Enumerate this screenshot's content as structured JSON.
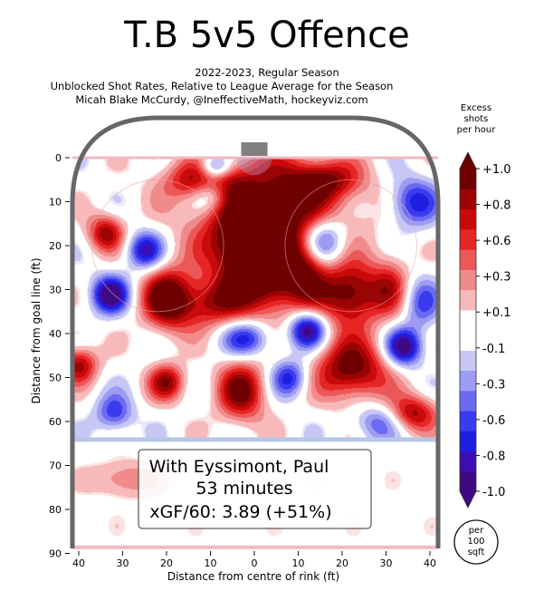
{
  "chart_data": {
    "type": "heatmap",
    "title": "T.B 5v5 Offence",
    "subtitle_lines": [
      "2022-2023, Regular Season",
      "Unblocked Shot Rates, Relative to League Average for the Season",
      "Micah Blake McCurdy, @IneffectiveMath, hockeyviz.com"
    ],
    "xlabel": "Distance from centre of rink (ft)",
    "ylabel": "Distance from goal line (ft)",
    "x_ticks": [
      40,
      30,
      20,
      10,
      0,
      10,
      20,
      30,
      40
    ],
    "y_ticks": [
      0,
      10,
      20,
      30,
      40,
      50,
      60,
      70,
      80,
      90
    ],
    "xlim": [
      -42,
      42
    ],
    "ylim": [
      0,
      90
    ],
    "colorbar": {
      "title_lines": [
        "Excess",
        "shots",
        "per hour"
      ],
      "tick_labels": [
        "+1.0",
        "+0.8",
        "+0.6",
        "+0.3",
        "+0.1",
        "-0.1",
        "-0.3",
        "-0.6",
        "-0.8",
        "-1.0"
      ],
      "range": [
        -1.0,
        1.0
      ],
      "unit_lines": [
        "per",
        "100",
        "sqft"
      ]
    },
    "hotspots": [
      {
        "x": 4,
        "y": 12,
        "value": 1.0,
        "sx": 12,
        "sy": 9
      },
      {
        "x": -1,
        "y": 20,
        "value": 0.9,
        "sx": 6,
        "sy": 6
      },
      {
        "x": -20,
        "y": 32,
        "value": 1.0,
        "sx": 4,
        "sy": 5
      },
      {
        "x": 22,
        "y": 31,
        "value": 1.0,
        "sx": 5,
        "sy": 5
      },
      {
        "x": 22,
        "y": 48,
        "value": 1.0,
        "sx": 6,
        "sy": 5
      },
      {
        "x": 4,
        "y": 28,
        "value": 0.8,
        "sx": 7,
        "sy": 6
      },
      {
        "x": -10,
        "y": 33,
        "value": 0.7,
        "sx": 6,
        "sy": 4
      },
      {
        "x": -34,
        "y": 17,
        "value": 0.8,
        "sx": 3,
        "sy": 3
      },
      {
        "x": -40,
        "y": 47,
        "value": 0.8,
        "sx": 3,
        "sy": 3
      },
      {
        "x": -20,
        "y": 51,
        "value": 0.8,
        "sx": 3,
        "sy": 3
      },
      {
        "x": -3,
        "y": 53,
        "value": 0.9,
        "sx": 4,
        "sy": 5
      },
      {
        "x": 36,
        "y": 58,
        "value": 0.8,
        "sx": 4,
        "sy": 3
      },
      {
        "x": -30,
        "y": 73,
        "value": 0.6,
        "sx": 5,
        "sy": 3
      },
      {
        "x": -12,
        "y": 5,
        "value": 0.7,
        "sx": 6,
        "sy": 3
      },
      {
        "x": 16,
        "y": 5,
        "value": 0.6,
        "sx": 6,
        "sy": 3
      },
      {
        "x": 12,
        "y": 24,
        "value": 0.5,
        "sx": 3,
        "sy": 6
      },
      {
        "x": 31,
        "y": 29,
        "value": 0.5,
        "sx": 3,
        "sy": 5
      },
      {
        "x": -10,
        "y": 8,
        "value": -0.6,
        "sx": 3,
        "sy": 3
      },
      {
        "x": -9,
        "y": 2,
        "value": -0.8,
        "sx": 2.5,
        "sy": 2
      },
      {
        "x": 15,
        "y": 19,
        "value": -1.0,
        "sx": 4,
        "sy": 4
      },
      {
        "x": -25,
        "y": 21,
        "value": -0.8,
        "sx": 3,
        "sy": 3
      },
      {
        "x": -33,
        "y": 31,
        "value": -1.0,
        "sx": 3,
        "sy": 3
      },
      {
        "x": 12,
        "y": 39,
        "value": -1.0,
        "sx": 3,
        "sy": 3
      },
      {
        "x": -2,
        "y": 41,
        "value": -0.7,
        "sx": 4,
        "sy": 3
      },
      {
        "x": 34,
        "y": 43,
        "value": -1.0,
        "sx": 3,
        "sy": 3
      },
      {
        "x": 8,
        "y": 50,
        "value": -0.7,
        "sx": 3,
        "sy": 3
      },
      {
        "x": 36,
        "y": 10,
        "value": -0.7,
        "sx": 4,
        "sy": 4
      },
      {
        "x": -32,
        "y": 58,
        "value": -0.6,
        "sx": 3,
        "sy": 3
      },
      {
        "x": 28,
        "y": 60,
        "value": -0.5,
        "sx": 4,
        "sy": 3
      },
      {
        "x": 38,
        "y": 33,
        "value": -0.5,
        "sx": 3,
        "sy": 4
      }
    ],
    "annotation_lines": [
      "With Eyssimont, Paul",
      "53 minutes",
      "xGF/60: 3.89 (+51%)"
    ]
  }
}
